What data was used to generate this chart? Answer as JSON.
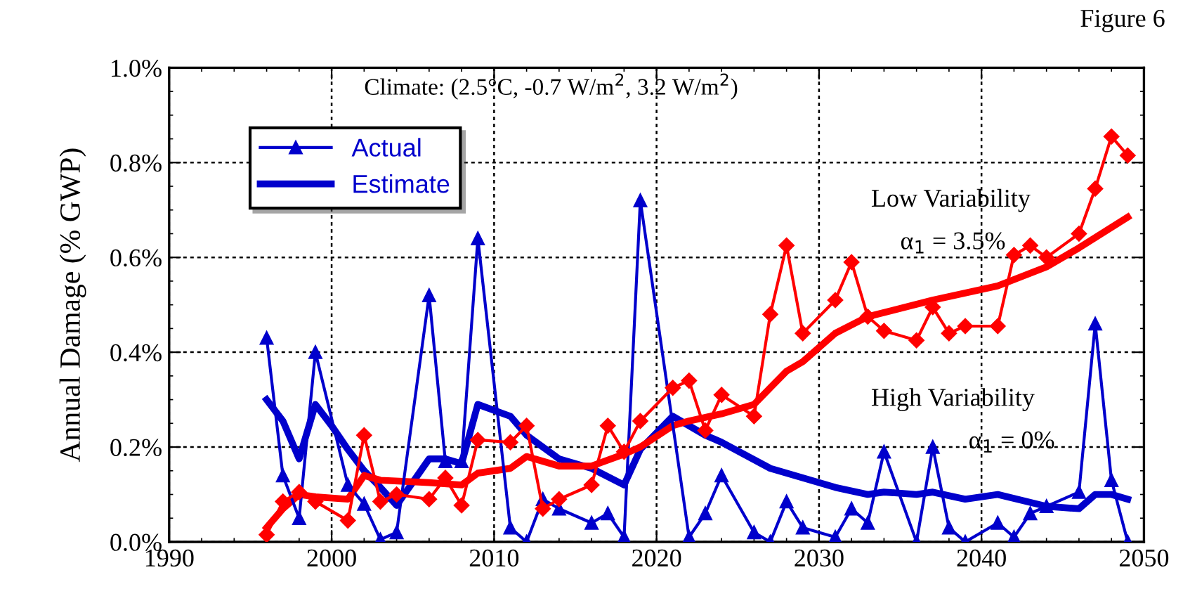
{
  "chart_data": {
    "type": "line",
    "ylabel": "Annual Damage (% GWP)",
    "annotations": [
      "Figure 6",
      "Climate: (2.5°C, -0.7 W/m$^{2}$, 3.2 W/m$^{2}$)",
      "Low Variability",
      "α$_{1}$ = 3.5%",
      "High Variability",
      "α$_{1}$ = 0%"
    ],
    "xlim": [
      1990,
      2050
    ],
    "xticks": [
      1990,
      2000,
      2010,
      2020,
      2030,
      2040,
      2050
    ],
    "ylim": [
      0,
      1.0
    ],
    "yticks": [
      {
        "value": 0,
        "label": "0.0%"
      },
      {
        "value": 0.2,
        "label": "0.2%"
      },
      {
        "value": 0.4,
        "label": "0.4%"
      },
      {
        "value": 0.6,
        "label": "0.6%"
      },
      {
        "value": 0.8,
        "label": "0.8%"
      },
      {
        "value": 1.0,
        "label": "1.0%"
      }
    ],
    "grid": true,
    "legend": "top left",
    "line_style": "solid",
    "series": [
      {
        "name": "Actual",
        "color": "#0000cc",
        "marker": "triangle",
        "x": [
          1996,
          1997,
          1998,
          1999,
          2001,
          2002,
          2003,
          2004,
          2006,
          2007,
          2008,
          2009,
          2011,
          2012,
          2013,
          2014,
          2016,
          2017,
          2018,
          2019,
          2022,
          2023,
          2024,
          2026,
          2027,
          2028,
          2029,
          2031,
          2032,
          2033,
          2034,
          2036,
          2037,
          2038,
          2039,
          2041,
          2042,
          2043,
          2044,
          2046,
          2047,
          2048,
          2049
        ],
        "values": [
          0.43,
          0.14,
          0.05,
          0.4,
          0.12,
          0.08,
          0.005,
          0.02,
          0.52,
          0.17,
          0.17,
          0.64,
          0.03,
          0.0,
          0.09,
          0.07,
          0.04,
          0.06,
          0.01,
          0.72,
          0.01,
          0.06,
          0.14,
          0.02,
          0.0,
          0.085,
          0.03,
          0.01,
          0.07,
          0.04,
          0.19,
          0.0,
          0.2,
          0.03,
          0.0,
          0.04,
          0.01,
          0.06,
          0.075,
          0.105,
          0.46,
          0.13,
          0.0
        ]
      },
      {
        "name": "Estimate",
        "color": "#0000cc",
        "marker": "none",
        "x": [
          1996,
          1997,
          1998,
          1999,
          2000,
          2001,
          2002,
          2003,
          2004,
          2006,
          2007,
          2008,
          2009,
          2011,
          2012,
          2014,
          2016,
          2018,
          2019,
          2021,
          2023,
          2024,
          2027,
          2028,
          2031,
          2033,
          2034,
          2036,
          2037,
          2039,
          2041,
          2044,
          2046,
          2047,
          2048,
          2049
        ],
        "values": [
          0.3,
          0.255,
          0.175,
          0.29,
          0.245,
          0.195,
          0.15,
          0.115,
          0.077,
          0.175,
          0.175,
          0.165,
          0.29,
          0.265,
          0.225,
          0.175,
          0.155,
          0.12,
          0.195,
          0.265,
          0.225,
          0.21,
          0.155,
          0.145,
          0.115,
          0.1,
          0.105,
          0.1,
          0.105,
          0.09,
          0.1,
          0.075,
          0.07,
          0.1,
          0.1,
          0.09
        ]
      },
      {
        "color": "#ff0000",
        "marker": "diamond",
        "x": [
          1996,
          1997,
          1998,
          1999,
          2001,
          2002,
          2003,
          2004,
          2006,
          2007,
          2008,
          2009,
          2011,
          2012,
          2013,
          2014,
          2016,
          2017,
          2018,
          2019,
          2021,
          2022,
          2023,
          2024,
          2026,
          2027,
          2028,
          2029,
          2031,
          2032,
          2033,
          2034,
          2036,
          2037,
          2038,
          2039,
          2041,
          2042,
          2043,
          2044,
          2046,
          2047,
          2048,
          2049
        ],
        "values": [
          0.015,
          0.085,
          0.105,
          0.085,
          0.045,
          0.225,
          0.085,
          0.1,
          0.09,
          0.135,
          0.077,
          0.215,
          0.21,
          0.245,
          0.07,
          0.09,
          0.12,
          0.245,
          0.19,
          0.255,
          0.325,
          0.34,
          0.235,
          0.31,
          0.265,
          0.48,
          0.625,
          0.44,
          0.51,
          0.59,
          0.475,
          0.445,
          0.425,
          0.495,
          0.44,
          0.455,
          0.455,
          0.605,
          0.625,
          0.6,
          0.65,
          0.745,
          0.855,
          0.815
        ]
      },
      {
        "color": "#ff0000",
        "marker": "none",
        "x": [
          1996,
          1997,
          1998,
          1999,
          2001,
          2002,
          2003,
          2006,
          2008,
          2009,
          2011,
          2012,
          2014,
          2016,
          2018,
          2019,
          2021,
          2022,
          2024,
          2026,
          2027,
          2028,
          2029,
          2031,
          2033,
          2037,
          2041,
          2044,
          2046,
          2049
        ],
        "values": [
          0.03,
          0.07,
          0.1,
          0.095,
          0.09,
          0.14,
          0.13,
          0.125,
          0.12,
          0.145,
          0.155,
          0.18,
          0.16,
          0.16,
          0.185,
          0.2,
          0.245,
          0.255,
          0.27,
          0.29,
          0.325,
          0.36,
          0.38,
          0.44,
          0.475,
          0.51,
          0.54,
          0.58,
          0.62,
          0.685
        ]
      }
    ]
  }
}
